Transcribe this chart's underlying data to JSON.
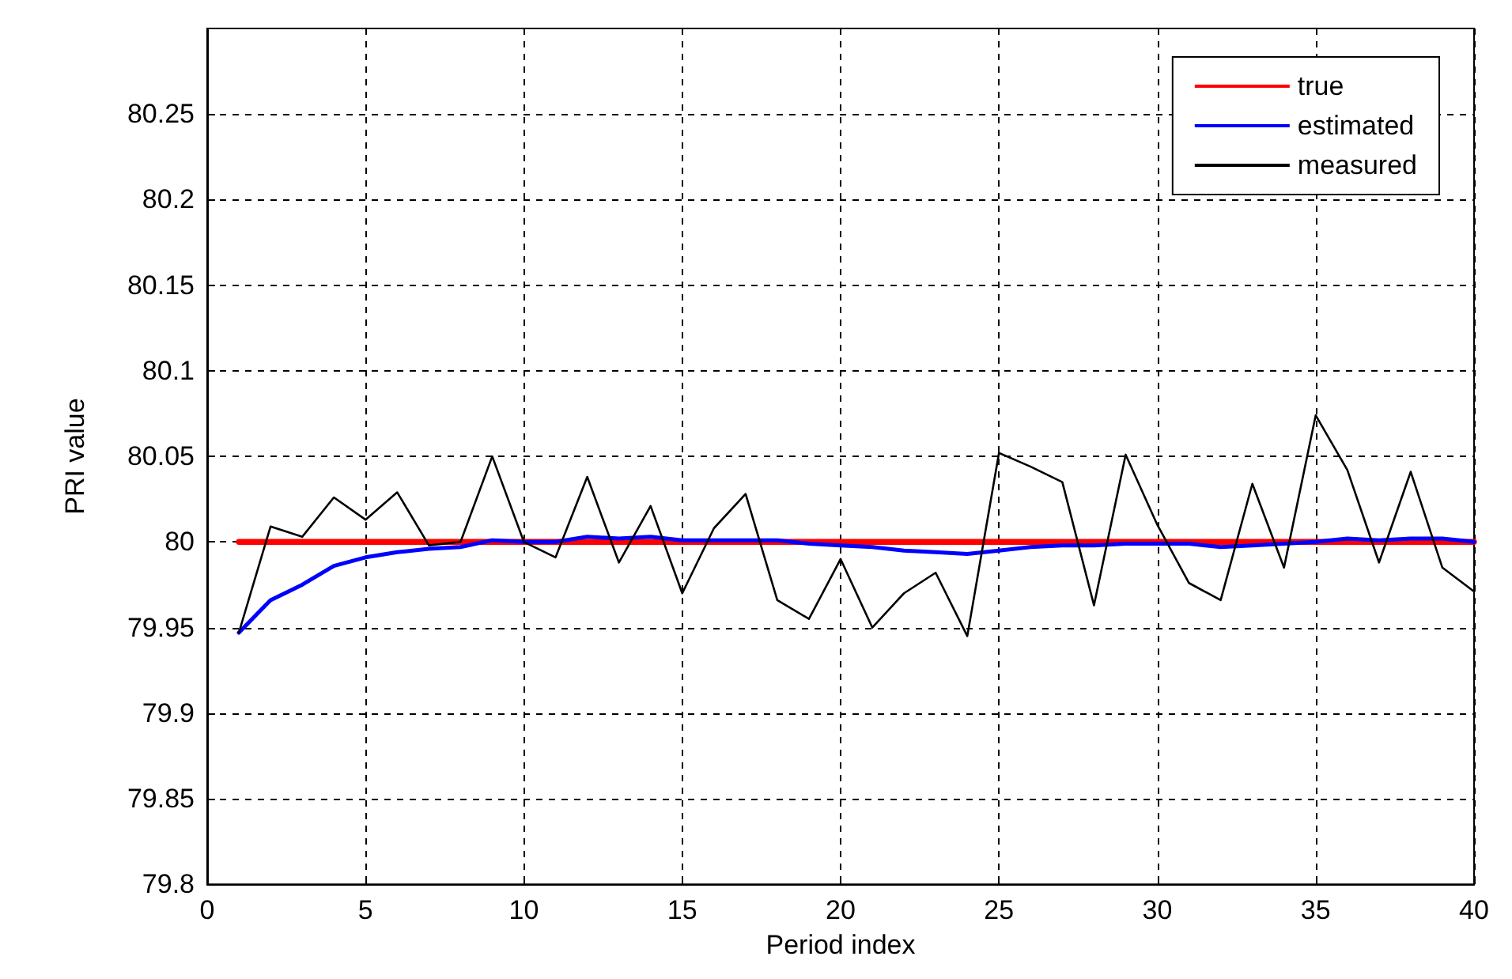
{
  "chart_data": {
    "type": "line",
    "xlabel": "Period index",
    "ylabel": "PRI value",
    "x": [
      1,
      2,
      3,
      4,
      5,
      6,
      7,
      8,
      9,
      10,
      11,
      12,
      13,
      14,
      15,
      16,
      17,
      18,
      19,
      20,
      21,
      22,
      23,
      24,
      25,
      26,
      27,
      28,
      29,
      30,
      31,
      32,
      33,
      34,
      35,
      36,
      37,
      38,
      39,
      40
    ],
    "series": [
      {
        "name": "true",
        "color": "#ff0000",
        "values": [
          80,
          80,
          80,
          80,
          80,
          80,
          80,
          80,
          80,
          80,
          80,
          80,
          80,
          80,
          80,
          80,
          80,
          80,
          80,
          80,
          80,
          80,
          80,
          80,
          80,
          80,
          80,
          80,
          80,
          80,
          80,
          80,
          80,
          80,
          80,
          80,
          80,
          80,
          80,
          80
        ]
      },
      {
        "name": "estimated",
        "color": "#0000ff",
        "values": [
          79.947,
          79.966,
          79.975,
          79.986,
          79.991,
          79.994,
          79.996,
          79.997,
          80.001,
          80.0,
          80.0,
          80.003,
          80.002,
          80.003,
          80.001,
          80.001,
          80.001,
          80.001,
          79.999,
          79.998,
          79.997,
          79.995,
          79.994,
          79.993,
          79.995,
          79.997,
          79.998,
          79.998,
          79.999,
          79.999,
          79.999,
          79.997,
          79.998,
          79.999,
          80.0,
          80.002,
          80.001,
          80.002,
          80.002,
          80.0
        ]
      },
      {
        "name": "measured",
        "color": "#000000",
        "values": [
          79.947,
          80.009,
          80.003,
          80.026,
          80.013,
          80.029,
          79.998,
          80.0,
          80.05,
          80.0,
          79.991,
          80.038,
          79.988,
          80.021,
          79.97,
          80.008,
          80.028,
          79.966,
          79.955,
          79.99,
          79.95,
          79.97,
          79.982,
          79.945,
          80.052,
          80.044,
          80.035,
          79.963,
          80.051,
          80.01,
          79.976,
          79.966,
          80.034,
          79.985,
          80.074,
          80.042,
          79.988,
          80.041,
          79.985,
          79.971
        ]
      }
    ],
    "xlim": [
      0,
      40
    ],
    "xticks": [
      0,
      5,
      10,
      15,
      20,
      25,
      30,
      35,
      40
    ],
    "ylim": [
      79.8,
      80.3
    ],
    "yticks": [
      79.8,
      79.85,
      79.9,
      79.95,
      80,
      80.05,
      80.1,
      80.15,
      80.2,
      80.25
    ],
    "grid": true,
    "legend": "top right",
    "marker": "none",
    "line_style": "solid"
  }
}
